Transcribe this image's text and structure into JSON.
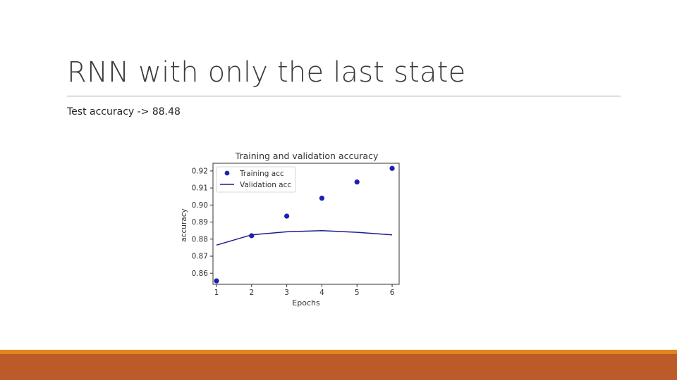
{
  "slide": {
    "title": "RNN with only the last state",
    "subtitle": "Test accuracy -> 88.48"
  },
  "colors": {
    "training": "#1f1fb4",
    "validation": "#1c1c8f",
    "footer_accent": "#e0871c",
    "footer_band": "#bc5a29"
  },
  "chart_data": {
    "type": "line",
    "title": "Training and validation accuracy",
    "xlabel": "Epochs",
    "ylabel": "accuracy",
    "x": [
      1,
      2,
      3,
      4,
      5,
      6
    ],
    "xlim": [
      0.9,
      6.2
    ],
    "ylim": [
      0.8535,
      0.9245
    ],
    "x_ticks": [
      "1",
      "2",
      "3",
      "4",
      "5",
      "6"
    ],
    "y_ticks": [
      {
        "value": 0.86,
        "label": "0.86"
      },
      {
        "value": 0.87,
        "label": "0.87"
      },
      {
        "value": 0.88,
        "label": "0.88"
      },
      {
        "value": 0.89,
        "label": "0.89"
      },
      {
        "value": 0.9,
        "label": "0.90"
      },
      {
        "value": 0.91,
        "label": "0.91"
      },
      {
        "value": 0.92,
        "label": "0.92"
      }
    ],
    "grid": false,
    "legend_position": "top-left",
    "series": [
      {
        "name": "Training acc",
        "style": "scatter",
        "values": [
          0.8555,
          0.882,
          0.8935,
          0.904,
          0.9135,
          0.9215
        ]
      },
      {
        "name": "Validation acc",
        "style": "line",
        "values": [
          0.8765,
          0.8825,
          0.8843,
          0.885,
          0.884,
          0.8825
        ]
      }
    ]
  }
}
